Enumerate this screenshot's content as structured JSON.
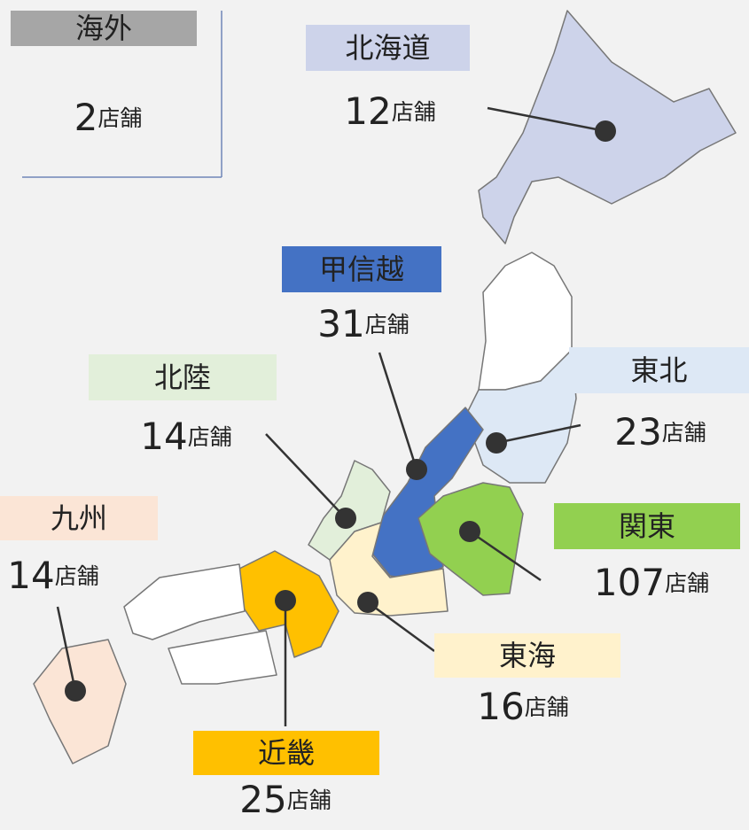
{
  "regions": [
    {
      "name": "海外",
      "count": 2,
      "unit": "店舗",
      "color": "#a6a6a6",
      "text_color": "#222222"
    },
    {
      "name": "北海道",
      "count": 12,
      "unit": "店舗",
      "color": "#cdd3ea",
      "text_color": "#222222"
    },
    {
      "name": "甲信越",
      "count": 31,
      "unit": "店舗",
      "color": "#4472c4",
      "text_color": "#ffffff"
    },
    {
      "name": "北陸",
      "count": 14,
      "unit": "店舗",
      "color": "#e2efda",
      "text_color": "#222222"
    },
    {
      "name": "東北",
      "count": 23,
      "unit": "店舗",
      "color": "#dde8f5",
      "text_color": "#222222"
    },
    {
      "name": "関東",
      "count": 107,
      "unit": "店舗",
      "color": "#92d050",
      "text_color": "#222222"
    },
    {
      "name": "九州",
      "count": 14,
      "unit": "店舗",
      "color": "#fbe5d6",
      "text_color": "#222222"
    },
    {
      "name": "東海",
      "count": 16,
      "unit": "店舗",
      "color": "#fff2cc",
      "text_color": "#222222"
    },
    {
      "name": "近畿",
      "count": 25,
      "unit": "店舗",
      "color": "#ffc000",
      "text_color": "#222222"
    }
  ]
}
